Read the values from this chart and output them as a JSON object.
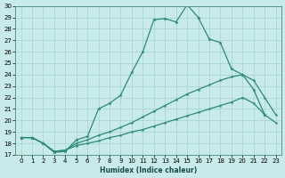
{
  "xlabel": "Humidex (Indice chaleur)",
  "bg_color": "#c8eaea",
  "line_color": "#2d8a7a",
  "grid_color": "#a8d8d0",
  "xlim": [
    -0.5,
    23.5
  ],
  "ylim": [
    17,
    30
  ],
  "yticks": [
    17,
    18,
    19,
    20,
    21,
    22,
    23,
    24,
    25,
    26,
    27,
    28,
    29,
    30
  ],
  "xticks": [
    0,
    1,
    2,
    3,
    4,
    5,
    6,
    7,
    8,
    9,
    10,
    11,
    12,
    13,
    14,
    15,
    16,
    17,
    18,
    19,
    20,
    21,
    22,
    23
  ],
  "line1_x": [
    0,
    1,
    2,
    3,
    4,
    5,
    6,
    7,
    8,
    9,
    10,
    11,
    12,
    13,
    14,
    15,
    16,
    17,
    18,
    19,
    20,
    21,
    22
  ],
  "line1_y": [
    18.5,
    18.5,
    18.0,
    17.2,
    17.3,
    18.3,
    18.6,
    21.0,
    21.5,
    22.2,
    24.2,
    26.0,
    28.8,
    28.9,
    28.6,
    30.1,
    29.0,
    27.1,
    26.8,
    24.5,
    24.0,
    22.7,
    20.5
  ],
  "line2_x": [
    0,
    1,
    2,
    3,
    4,
    5,
    6,
    7,
    8,
    9,
    10,
    11,
    12,
    13,
    14,
    15,
    16,
    17,
    18,
    19,
    20,
    21,
    22,
    23
  ],
  "line2_y": [
    18.5,
    18.5,
    18.0,
    17.3,
    17.4,
    18.0,
    18.3,
    18.7,
    19.0,
    19.4,
    19.8,
    20.3,
    20.8,
    21.3,
    21.8,
    22.3,
    22.7,
    23.1,
    23.5,
    23.8,
    24.0,
    23.5,
    22.0,
    20.5
  ],
  "line3_x": [
    0,
    1,
    2,
    3,
    4,
    5,
    6,
    7,
    8,
    9,
    10,
    11,
    12,
    13,
    14,
    15,
    16,
    17,
    18,
    19,
    20,
    21,
    22,
    23
  ],
  "line3_y": [
    18.5,
    18.5,
    18.0,
    17.3,
    17.4,
    17.8,
    18.0,
    18.2,
    18.5,
    18.7,
    19.0,
    19.2,
    19.5,
    19.8,
    20.1,
    20.4,
    20.7,
    21.0,
    21.3,
    21.6,
    22.0,
    21.5,
    20.5,
    19.8
  ]
}
